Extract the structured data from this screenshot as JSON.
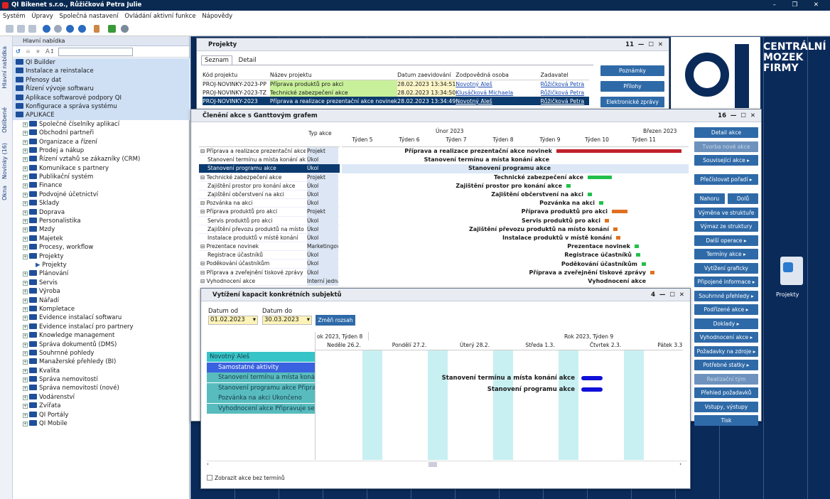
{
  "app": {
    "title": "QI Bikenet s.r.o., Růžičková Petra Julie",
    "window_controls": "– ❐ ✕"
  },
  "menu": [
    "Systém",
    "Úpravy",
    "Společná nastavení",
    "Ovládání aktivní funkce",
    "Nápovědy"
  ],
  "left_tabs": [
    "Hlavní nabídka",
    "Oblíbené",
    "Novinky (16)",
    "Okna"
  ],
  "nav": {
    "header": "Hlavní nabídka",
    "items": [
      {
        "label": "QI Builder",
        "level": 0,
        "hl": true
      },
      {
        "label": "Instalace a reinstalace",
        "level": 0,
        "hl": true
      },
      {
        "label": "Přenosy dat",
        "level": 0,
        "hl": true
      },
      {
        "label": "Řízení vývoje softwaru",
        "level": 0,
        "hl": true
      },
      {
        "label": "Aplikace softwarové podpory QI",
        "level": 0,
        "hl": true
      },
      {
        "label": "Konfigurace a správa systému",
        "level": 0,
        "hl": true
      },
      {
        "label": "APLIKACE",
        "level": 0,
        "hl": true
      },
      {
        "label": "Společné číselníky aplikací",
        "level": 1
      },
      {
        "label": "Obchodní partneři",
        "level": 1
      },
      {
        "label": "Organizace a řízení",
        "level": 1
      },
      {
        "label": "Prodej a nákup",
        "level": 1
      },
      {
        "label": "Řízení vztahů se zákazníky (CRM)",
        "level": 1
      },
      {
        "label": "Komunikace s partnery",
        "level": 1
      },
      {
        "label": "Publikační systém",
        "level": 1
      },
      {
        "label": "Finance",
        "level": 1
      },
      {
        "label": "Podvojné účetnictví",
        "level": 1
      },
      {
        "label": "Sklady",
        "level": 1
      },
      {
        "label": "Doprava",
        "level": 1
      },
      {
        "label": "Personalistika",
        "level": 1
      },
      {
        "label": "Mzdy",
        "level": 1
      },
      {
        "label": "Majetek",
        "level": 1
      },
      {
        "label": "Procesy, workflow",
        "level": 1
      },
      {
        "label": "Projekty",
        "level": 1
      },
      {
        "label": "Projekty",
        "level": 2
      },
      {
        "label": "Plánování",
        "level": 1
      },
      {
        "label": "Servis",
        "level": 1
      },
      {
        "label": "Výroba",
        "level": 1
      },
      {
        "label": "Nářadí",
        "level": 1
      },
      {
        "label": "Kompletace",
        "level": 1
      },
      {
        "label": "Evidence instalací softwaru",
        "level": 1
      },
      {
        "label": "Evidence instalací pro partnery",
        "level": 1
      },
      {
        "label": "Knowledge management",
        "level": 1
      },
      {
        "label": "Správa dokumentů (DMS)",
        "level": 1
      },
      {
        "label": "Souhrnné pohledy",
        "level": 1
      },
      {
        "label": "Manažerské přehledy (BI)",
        "level": 1
      },
      {
        "label": "Kvalita",
        "level": 1
      },
      {
        "label": "Správa nemovitostí",
        "level": 1
      },
      {
        "label": "Správa nemovitostí (nové)",
        "level": 1
      },
      {
        "label": "Vodárenství",
        "level": 1
      },
      {
        "label": "Zvířata",
        "level": 1
      },
      {
        "label": "QI Portály",
        "level": 1
      },
      {
        "label": "QI Mobile",
        "level": 1
      }
    ]
  },
  "desktop": {
    "logo_lines": [
      "CENTRÁLNÍ",
      "MOZEK",
      "FIRMY"
    ],
    "icon_label": "Projekty"
  },
  "projekty": {
    "title": "Projekty",
    "badge": "11",
    "tabs": [
      "Seznam",
      "Detail"
    ],
    "columns": [
      "Kód projektu",
      "Název projektu",
      "Datum zaevidování",
      "Zodpovědná osoba",
      "Zadavatel"
    ],
    "rows": [
      [
        "PROJ-NOVINKY-2023-PP",
        "Příprava produktů pro akci",
        "28.02.2023 13:34:51",
        "Novotný Aleš",
        "Růžičková Petra"
      ],
      [
        "PROJ-NOVINKY-2023-TZ",
        "Technické zabezpečení akce",
        "28.02.2023 13:34:50",
        "Klusáčková Michaela",
        "Růžičková Petra"
      ],
      [
        "PROJ-NOVINKY-2023",
        "Příprava a realizace prezentační akce novinek",
        "28.02.2023 13:34:49",
        "Novotný Aleš",
        "Růžičková Petra"
      ]
    ],
    "buttons": [
      "Poznámky",
      "Přílohy",
      "Elektronické zprávy"
    ]
  },
  "gantt": {
    "title": "Členění akce s Ganttovým grafem",
    "badge": "16",
    "col_header": "Typ akce",
    "months": [
      "Únor 2023",
      "Březen 2023"
    ],
    "weeks": [
      "Týden 5",
      "Týden 6",
      "Týden 7",
      "Týden 8",
      "Týden 9",
      "Týden 10",
      "Týden 11"
    ],
    "rows": [
      {
        "name": "Příprava a realizace prezentační akce novir",
        "type": "Projekt",
        "indent": 0,
        "gl": "Příprava a realizace prezentační akce novinek"
      },
      {
        "name": "Stanovení termínu a místa konání akce",
        "type": "Úkol",
        "indent": 1,
        "gl": "Stanovení termínu a místa konání akce"
      },
      {
        "name": "Stanovení programu akce",
        "type": "Úkol",
        "indent": 1,
        "gl": "Stanovení programu akce"
      },
      {
        "name": "Technické zabezpečení akce",
        "type": "Projekt",
        "indent": 0,
        "gl": "Technické zabezpečení akce"
      },
      {
        "name": "Zajištění prostor pro konání akce",
        "type": "Úkol",
        "indent": 1,
        "gl": "Zajištění prostor pro konání akce"
      },
      {
        "name": "Zajištění občerstvení na akci",
        "type": "Úkol",
        "indent": 1,
        "gl": "Zajištění občerstvení na akci"
      },
      {
        "name": "Pozvánka na akci",
        "type": "Úkol",
        "indent": 0,
        "gl": "Pozvánka na akci"
      },
      {
        "name": "Příprava produktů pro akci",
        "type": "Projekt",
        "indent": 0,
        "gl": "Příprava produktů pro akci"
      },
      {
        "name": "Servis produktů pro akci",
        "type": "Úkol",
        "indent": 1,
        "gl": "Servis produktů pro akci"
      },
      {
        "name": "Zajištění převozu produktů na místo ko",
        "type": "Úkol",
        "indent": 1,
        "gl": "Zajištění převozu produktů na místo konání"
      },
      {
        "name": "Instalace produktů v místě konání",
        "type": "Úkol",
        "indent": 1,
        "gl": "Instalace produktů v místě konání"
      },
      {
        "name": "Prezentace novinek",
        "type": "Marketingova",
        "indent": 0,
        "gl": "Prezentace novinek"
      },
      {
        "name": "Registrace účastníků",
        "type": "Úkol",
        "indent": 1,
        "gl": "Registrace účastníků"
      },
      {
        "name": "Poděkování účastníkům",
        "type": "Úkol",
        "indent": 0,
        "gl": "Poděkování účastníkům"
      },
      {
        "name": "Příprava a zveřejnění tiskové zprávy",
        "type": "Úkol",
        "indent": 0,
        "gl": "Příprava a zveřejnění tiskové zprávy"
      },
      {
        "name": "Vyhodnocení akce",
        "type": "Interní jedná",
        "indent": 0,
        "gl": "Vyhodnocení akce"
      }
    ],
    "buttons": [
      {
        "label": "Detail akce"
      },
      {
        "label": "Tvorba nové akce",
        "disabled": true
      },
      {
        "label": "Související akce ▸"
      },
      {
        "label": "Přečíslovat pořadí ▸"
      },
      {
        "label": "Nahoru"
      },
      {
        "label": "Dolů"
      },
      {
        "label": "Výměna ve struktuře"
      },
      {
        "label": "Výmaz ze struktury"
      },
      {
        "label": "Další operace ▸"
      },
      {
        "label": "Termíny akce ▸"
      },
      {
        "label": "Vytížení graficky"
      },
      {
        "label": "Připojené informace ▸"
      },
      {
        "label": "Souhrnné přehledy ▸"
      },
      {
        "label": "Podřízené akce ▸"
      },
      {
        "label": "Doklady ▸"
      },
      {
        "label": "Vyhodnocení akce ▸"
      },
      {
        "label": "Požadavky na zdroje ▸"
      },
      {
        "label": "Potřebné statky ▸"
      },
      {
        "label": "Realizační tým",
        "disabled": true
      },
      {
        "label": "Přehled požadavků"
      },
      {
        "label": "Vstupy, výstupy"
      },
      {
        "label": "Tisk"
      }
    ]
  },
  "capacity": {
    "title": "Vytížení kapacit konkrétních subjektů",
    "badge": "4",
    "date_from_label": "Datum od",
    "date_to_label": "Datum do",
    "date_from": "01.02.2023",
    "date_to": "30.03.2023",
    "change_button": "Změň rozsah",
    "header_left": "ok 2023, Týden 8",
    "header_right": "Rok 2023, Týden 9",
    "days": [
      "Neděle 26.2.",
      "Pondělí 27.2.",
      "Úterý 28.2.",
      "Středa 1.3.",
      "Čtvrtek 2.3.",
      "Pátek 3.3."
    ],
    "resources": [
      {
        "label": "Novotný Aleš",
        "kind": "head"
      },
      {
        "label": "Samostatné aktivity",
        "kind": "blue"
      },
      {
        "label": "Stanovení termínu a místa konání",
        "kind": "teal"
      },
      {
        "label": "Stanovení programu akce Připrav",
        "kind": "teal"
      },
      {
        "label": "Pozvánka na akci Ukončeno",
        "kind": "teal"
      },
      {
        "label": "Vyhodnocení akce Připravuje se",
        "kind": "teal"
      }
    ],
    "chart_labels": [
      "Stanovení termínu a místa konání akce",
      "Stanovení programu akce"
    ],
    "checkbox_label": "Zobrazit akce bez termínů"
  },
  "colors": {
    "accent": "#2f6aa8",
    "desktop": "#0a2a5a",
    "selection": "#0b3a6e",
    "gantt_green": "#22c04a",
    "gantt_red": "#c0202a",
    "gantt_orange": "#e07020",
    "cap_blue": "#1010d8"
  }
}
